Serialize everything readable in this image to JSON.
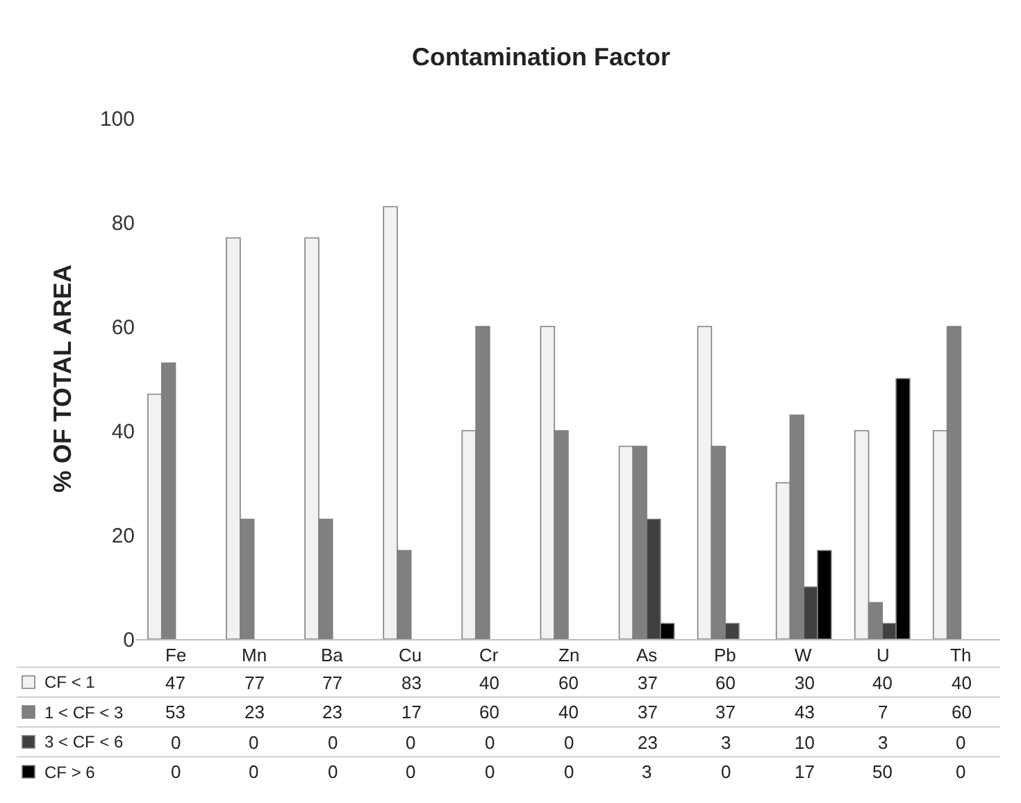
{
  "chart_data": {
    "type": "bar",
    "title": "Contamination Factor",
    "ylabel": "% OF TOTAL AREA",
    "categories": [
      "Fe",
      "Mn",
      "Ba",
      "Cu",
      "Cr",
      "Zn",
      "As",
      "Pb",
      "W",
      "U",
      "Th"
    ],
    "series": [
      {
        "name": "CF < 1",
        "color": "#f2f2f2",
        "values": [
          47,
          77,
          77,
          83,
          40,
          60,
          37,
          60,
          30,
          40,
          40
        ]
      },
      {
        "name": "1 < CF < 3",
        "color": "#808080",
        "values": [
          53,
          23,
          23,
          17,
          60,
          40,
          37,
          37,
          43,
          7,
          60
        ]
      },
      {
        "name": "3 < CF < 6",
        "color": "#404040",
        "values": [
          0,
          0,
          0,
          0,
          0,
          0,
          23,
          3,
          10,
          3,
          0
        ]
      },
      {
        "name": "CF > 6",
        "color": "#000000",
        "values": [
          0,
          0,
          0,
          0,
          0,
          0,
          3,
          0,
          17,
          50,
          0
        ]
      }
    ],
    "ylim": [
      0,
      100
    ],
    "yticks": [
      0,
      20,
      40,
      60,
      80,
      100
    ],
    "legend": "bottom",
    "data_labels": true
  }
}
